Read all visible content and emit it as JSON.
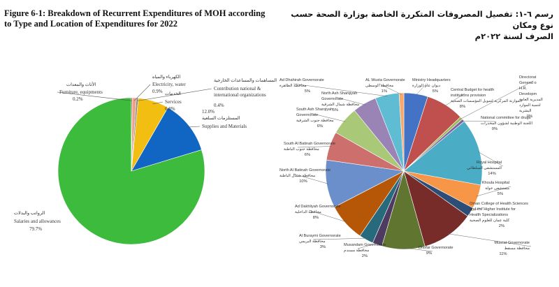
{
  "titles": {
    "en_line1": "Figure 6-1: Breakdown of Recurrent Expenditures of MOH according",
    "en_line2": "to Type and Location of Expenditures for 2022",
    "ar_line1": "رسم ٦-١: تفصيل المصروفات المتكررة الخاصة بوزارة الصحة حسب نوع ومكان",
    "ar_line2": "الصرف لسنة ٢٠٢٢م"
  },
  "chart_data": [
    {
      "type": "pie",
      "title": "",
      "slices": [
        {
          "label": "Salaries and allowances",
          "label_ar": "الرواتب والبدلات",
          "value": 79.7,
          "display": "79.7%",
          "color": "#3dbb3c"
        },
        {
          "label": "Supplies and Materials",
          "label_ar": "المستلزمات السلعية",
          "value": 12.0,
          "display": "12.0%",
          "color": "#1066c2"
        },
        {
          "label": "Services",
          "label_ar": "الخدمات",
          "value": 6.8,
          "display": "6.8%",
          "color": "#f2be12"
        },
        {
          "label": "Contribution national & international organizations",
          "label_ar": "المساهمات والمساعدات الخارجية",
          "value": 0.4,
          "display": "0.4%",
          "color": "#7f7f7f"
        },
        {
          "label": "Electricity, water",
          "label_ar": "الكهرباء والمياه",
          "value": 0.9,
          "display": "0.9%",
          "color": "#e8a38a"
        },
        {
          "label": "Furniture, equipments",
          "label_ar": "الأثاث والمعدات",
          "value": 0.2,
          "display": "0.2%",
          "color": "#c1272d"
        }
      ]
    },
    {
      "type": "pie",
      "title": "",
      "slices": [
        {
          "name": "Ministry Headquarters",
          "name_ar": "ديوان عام الوزارة",
          "value": 5,
          "display": "5%",
          "color": "#4472c4"
        },
        {
          "name": "Central Budget for health institutions provision",
          "name_ar": "الموازنة المركزية لتمويل المؤسسات الصحية",
          "value": 8,
          "display": "8%",
          "color": "#c0504d"
        },
        {
          "name": "Directorate General of H.R. Development",
          "name_ar": "المديرية العامة لتنمية الموارد البشرية",
          "value": 0,
          "display": "0%",
          "color": "#9bbb59"
        },
        {
          "name": "National committee for drugs",
          "name_ar": "اللجنة الوطنية لشؤون المخدرات",
          "value": 0,
          "display": "0%",
          "color": "#8064a2"
        },
        {
          "name": "Royal Hospital",
          "name_ar": "المستشفى السلطاني",
          "value": 14,
          "display": "14%",
          "color": "#4bacc6"
        },
        {
          "name": "Khoula Hospital",
          "name_ar": "مستشفى خولة",
          "value": 5,
          "display": "5%",
          "color": "#f79646"
        },
        {
          "name": "Oman College of Health Sciences and the Higher Institute for Health Specializations",
          "name_ar": "كلية عمان للعلوم الصحية والمعهد العالي للتخصصات الصحية",
          "value": 2,
          "display": "2%",
          "color": "#2c4d75"
        },
        {
          "name": "Muscat Governorate",
          "name_ar": "محافظة مسقط",
          "value": 11,
          "display": "11%",
          "color": "#772c2a"
        },
        {
          "name": "Dhofar Governorate",
          "name_ar": "محافظة ظفار",
          "value": 9,
          "display": "9%",
          "color": "#5f7530"
        },
        {
          "name": "Musandam Governorate",
          "name_ar": "محافظة مسندم",
          "value": 2,
          "display": "2%",
          "color": "#4d3b62"
        },
        {
          "name": "Al Buraymi Governorate",
          "name_ar": "محافظة البريمي",
          "value": 3,
          "display": "3%",
          "color": "#276a7c"
        },
        {
          "name": "Ad Dakhliyah Governorate",
          "name_ar": "محافظة الداخلية",
          "value": 8,
          "display": "8%",
          "color": "#b65708"
        },
        {
          "name": "North Al Batinah Governorate",
          "name_ar": "محافظة شمال الباطنة",
          "value": 10,
          "display": "10%",
          "color": "#6a8fca"
        },
        {
          "name": "South Al Batinah Governorate",
          "name_ar": "محافظة جنوب الباطنة",
          "value": 6,
          "display": "6%",
          "color": "#cd6f6c"
        },
        {
          "name": "South Ash Sharqiyah Governorate",
          "name_ar": "محافظة جنوب الشرقية",
          "value": 6,
          "display": "6%",
          "color": "#a9c978"
        },
        {
          "name": "North Ash Sharqiyah Governorate",
          "name_ar": "محافظة شمال الشرقية",
          "value": 5,
          "display": "5%",
          "color": "#9a83b5"
        },
        {
          "name": "Ad Dhahirah Governorate",
          "name_ar": "محافظة الظاهرة",
          "value": 5,
          "display": "5%",
          "color": "#5fbcd3"
        },
        {
          "name": "AL Wusta Governorate",
          "name_ar": "محافظة الوسطى",
          "value": 1,
          "display": "1%",
          "color": "#f9a86b"
        }
      ]
    }
  ]
}
